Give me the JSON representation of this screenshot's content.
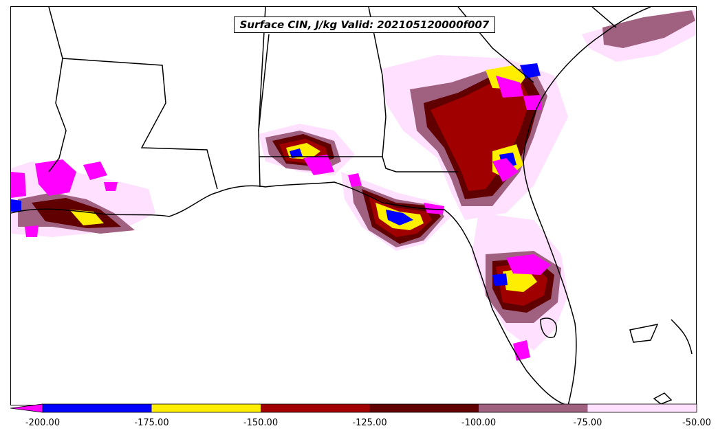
{
  "map": {
    "title": "Surface CIN, J/kg Valid: 202105120000f007",
    "variable": "Surface CIN",
    "units": "J/kg",
    "valid": "202105120000f007"
  },
  "colorbar": {
    "levels": [
      {
        "range": [
          -200,
          -175
        ],
        "color": "#0000ff"
      },
      {
        "range": [
          -175,
          -150
        ],
        "color": "#ffee00"
      },
      {
        "range": [
          -150,
          -125
        ],
        "color": "#a00000"
      },
      {
        "range": [
          -125,
          -100
        ],
        "color": "#600000"
      },
      {
        "range": [
          -100,
          -75
        ],
        "color": "#a06080"
      },
      {
        "range": [
          -75,
          -50
        ],
        "color": "#ffe0ff"
      }
    ],
    "underflow_color": "#ff00ff",
    "tick_labels": [
      "-200.00",
      "-175.00",
      "-150.00",
      "-125.00",
      "-100.00",
      "-75.00",
      "-50.00"
    ]
  }
}
